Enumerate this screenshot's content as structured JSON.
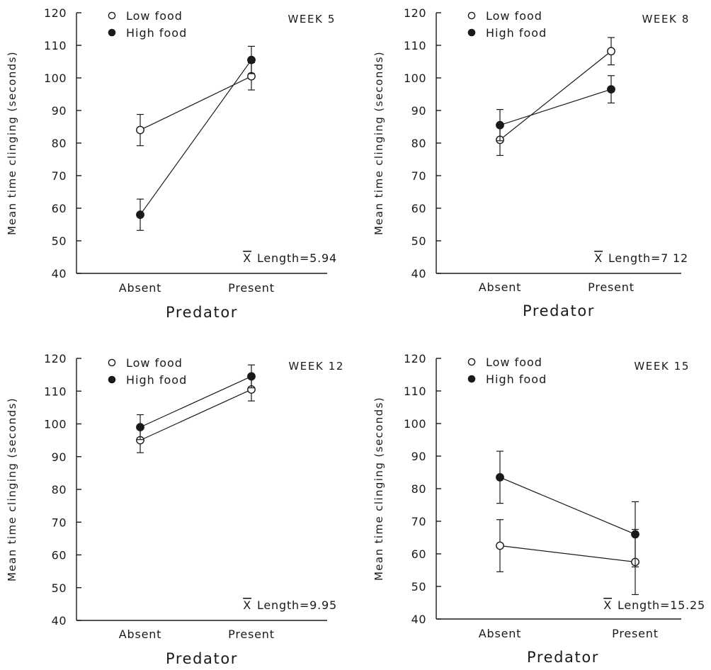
{
  "chart_data": [
    {
      "type": "line",
      "panel_label": "WEEK 5",
      "categories": [
        "Absent",
        "Present"
      ],
      "xlabel": "Predator",
      "ylabel": "Mean time clinging (seconds)",
      "ylim": [
        40,
        120
      ],
      "yticks": [
        40,
        50,
        60,
        70,
        80,
        90,
        100,
        110,
        120
      ],
      "legend_position": "top-left",
      "series": [
        {
          "name": "Low food",
          "marker": "open-circle",
          "values": [
            84,
            100.5
          ],
          "errors": [
            4.8,
            4.2
          ]
        },
        {
          "name": "High food",
          "marker": "filled-circle",
          "values": [
            58,
            105.5
          ],
          "errors": [
            4.8,
            4.2
          ]
        }
      ],
      "annotation": {
        "prefix": "X",
        "text": "Length=5.94"
      }
    },
    {
      "type": "line",
      "panel_label": "WEEK 8",
      "categories": [
        "Absent",
        "Present"
      ],
      "xlabel": "Predator",
      "ylabel": "Mean time clinging (seconds)",
      "ylim": [
        40,
        120
      ],
      "yticks": [
        40,
        50,
        60,
        70,
        80,
        90,
        100,
        110,
        120
      ],
      "legend_position": "top-left",
      "series": [
        {
          "name": "Low food",
          "marker": "open-circle",
          "values": [
            81,
            108.2
          ],
          "errors": [
            4.8,
            4.2
          ]
        },
        {
          "name": "High food",
          "marker": "filled-circle",
          "values": [
            85.5,
            96.5
          ],
          "errors": [
            4.8,
            4.2
          ]
        }
      ],
      "annotation": {
        "prefix": "X",
        "text": "Length=7 12"
      }
    },
    {
      "type": "line",
      "panel_label": "WEEK 12",
      "categories": [
        "Absent",
        "Present"
      ],
      "xlabel": "Predator",
      "ylabel": "Mean time clinging (seconds)",
      "ylim": [
        40,
        120
      ],
      "yticks": [
        40,
        50,
        60,
        70,
        80,
        90,
        100,
        110,
        120
      ],
      "legend_position": "top-left",
      "series": [
        {
          "name": "Low food",
          "marker": "open-circle",
          "values": [
            95,
            110.5
          ],
          "errors": [
            3.8,
            3.5
          ]
        },
        {
          "name": "High food",
          "marker": "filled-circle",
          "values": [
            99,
            114.5
          ],
          "errors": [
            3.8,
            3.5
          ]
        }
      ],
      "annotation": {
        "prefix": "X",
        "text": "Length=9.95"
      }
    },
    {
      "type": "line",
      "panel_label": "WEEK 15",
      "categories": [
        "Absent",
        "Present"
      ],
      "xlabel": "Predator",
      "ylabel": "Mean time clinging (seconds)",
      "ylim": [
        40,
        120
      ],
      "yticks": [
        40,
        50,
        60,
        70,
        80,
        90,
        100,
        110,
        120
      ],
      "legend_position": "top-left",
      "series": [
        {
          "name": "Low food",
          "marker": "open-circle",
          "values": [
            62.5,
            57.5
          ],
          "errors": [
            8,
            10
          ]
        },
        {
          "name": "High food",
          "marker": "filled-circle",
          "values": [
            83.5,
            66
          ],
          "errors": [
            8,
            10
          ]
        }
      ],
      "annotation": {
        "prefix": "X",
        "text": "Length=15.25"
      }
    }
  ]
}
